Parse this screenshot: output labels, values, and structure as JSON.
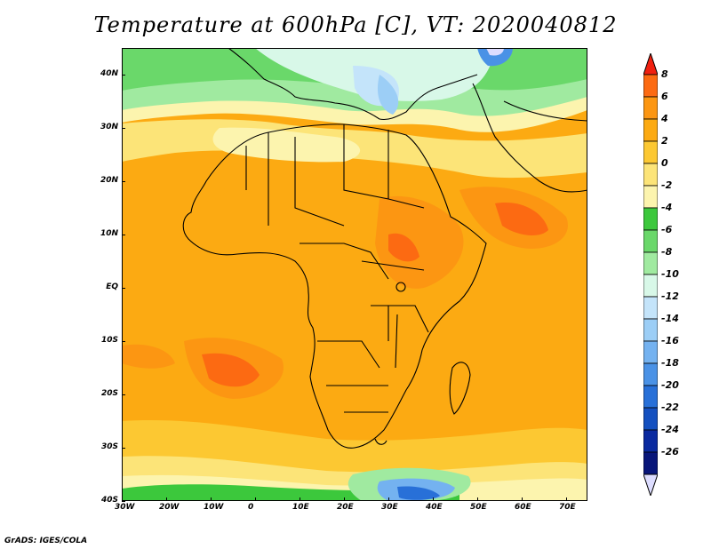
{
  "title": "Temperature at 600hPa [C], VT: 2020040812",
  "credit": "GrADS: IGES/COLA",
  "map": {
    "lat_labels": [
      "40N",
      "30N",
      "20N",
      "10N",
      "EQ",
      "10S",
      "20S",
      "30S",
      "40S"
    ],
    "lon_labels": [
      "30W",
      "20W",
      "10W",
      "0",
      "10E",
      "20E",
      "30E",
      "40E",
      "50E",
      "60E",
      "70E"
    ]
  },
  "colorbar": {
    "labels": [
      "8",
      "6",
      "4",
      "2",
      "0",
      "-2",
      "-4",
      "-6",
      "-8",
      "-10",
      "-12",
      "-14",
      "-16",
      "-18",
      "-20",
      "-22",
      "-24",
      "-26"
    ],
    "colors": [
      "#f02010",
      "#fc6a12",
      "#fc9612",
      "#fcaa12",
      "#fcc832",
      "#fce478",
      "#fcf4ae",
      "#3cc83c",
      "#6ad86a",
      "#a0eaa0",
      "#d8f8e8",
      "#c4e4fa",
      "#9ccef6",
      "#74b2f0",
      "#4a92e6",
      "#2870d8",
      "#1450c0",
      "#0a2aa0",
      "#08167a",
      "#ddddff"
    ]
  },
  "icons": {
    "arrow_up": "arrow-up-icon",
    "arrow_down": "arrow-down-icon"
  }
}
